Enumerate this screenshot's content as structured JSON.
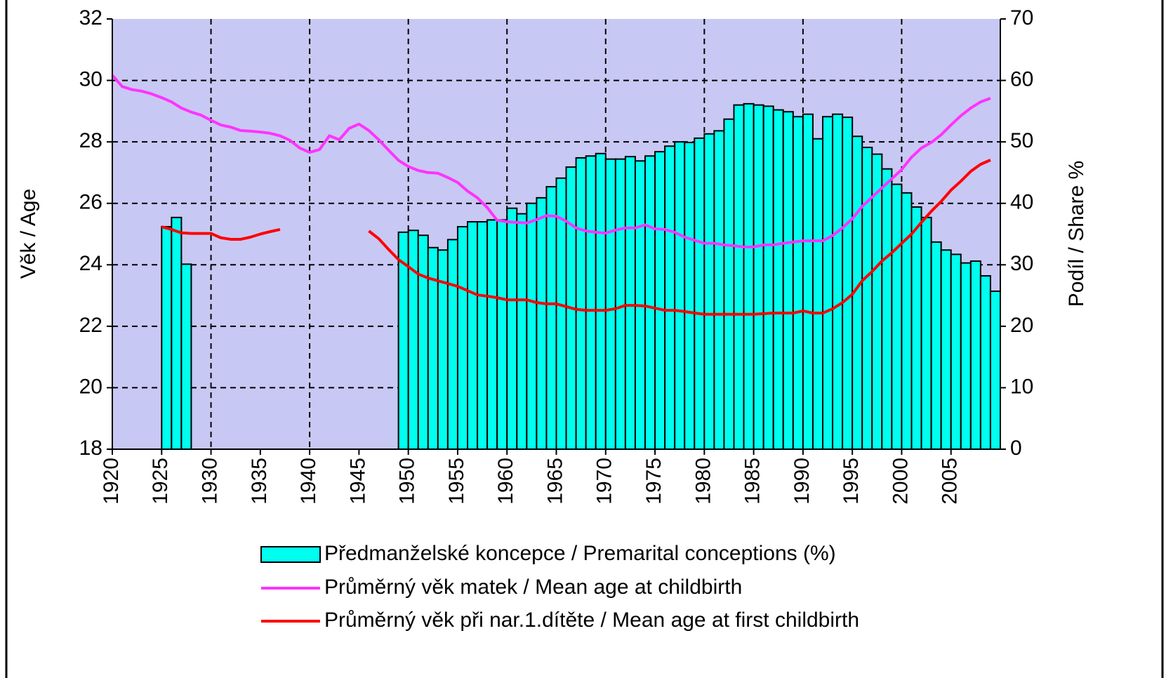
{
  "chart_data": {
    "type": "bar",
    "y_label": "Věk / Age",
    "y2_label": "Podíl / Share %",
    "x": [
      1920,
      1921,
      1922,
      1923,
      1924,
      1925,
      1926,
      1927,
      1928,
      1929,
      1930,
      1931,
      1932,
      1933,
      1934,
      1935,
      1936,
      1937,
      1938,
      1939,
      1940,
      1941,
      1942,
      1943,
      1944,
      1945,
      1946,
      1947,
      1948,
      1949,
      1950,
      1951,
      1952,
      1953,
      1954,
      1955,
      1956,
      1957,
      1958,
      1959,
      1960,
      1961,
      1962,
      1963,
      1964,
      1965,
      1966,
      1967,
      1968,
      1969,
      1970,
      1971,
      1972,
      1973,
      1974,
      1975,
      1976,
      1977,
      1978,
      1979,
      1980,
      1981,
      1982,
      1983,
      1984,
      1985,
      1986,
      1987,
      1988,
      1989,
      1990,
      1991,
      1992,
      1993,
      1994,
      1995,
      1996,
      1997,
      1998,
      1999,
      2000,
      2001,
      2002,
      2003,
      2004,
      2005,
      2006,
      2007,
      2008,
      2009
    ],
    "xlim": [
      1920,
      2010
    ],
    "xticks": [
      1920,
      1925,
      1930,
      1935,
      1940,
      1945,
      1950,
      1955,
      1960,
      1965,
      1970,
      1975,
      1980,
      1985,
      1990,
      1995,
      2000,
      2005
    ],
    "ylim": [
      18,
      32
    ],
    "yticks": [
      18,
      20,
      22,
      24,
      26,
      28,
      30,
      32
    ],
    "y2lim": [
      0,
      70
    ],
    "y2ticks": [
      0,
      10,
      20,
      30,
      40,
      50,
      60,
      70
    ],
    "grid": true,
    "series": [
      {
        "name": "Předmanželské koncepce / Premarital conceptions (%)",
        "type": "bar",
        "axis": "y2",
        "color": "#00ffee",
        "values": [
          null,
          null,
          null,
          null,
          null,
          36.2,
          37.7,
          30.1,
          null,
          null,
          null,
          null,
          null,
          null,
          null,
          null,
          null,
          null,
          null,
          null,
          null,
          null,
          null,
          null,
          null,
          null,
          null,
          null,
          null,
          35.3,
          35.6,
          34.8,
          32.8,
          32.4,
          34.1,
          36.2,
          37.0,
          37.0,
          37.3,
          37.3,
          39.2,
          38.3,
          40.0,
          40.9,
          42.7,
          44.1,
          45.9,
          47.4,
          47.7,
          48.1,
          47.2,
          47.2,
          47.6,
          46.9,
          47.7,
          48.4,
          49.3,
          50.0,
          49.9,
          50.6,
          51.3,
          51.8,
          53.7,
          56.0,
          56.2,
          56.0,
          55.8,
          55.2,
          54.9,
          54.1,
          54.5,
          50.5,
          54.1,
          54.5,
          54.0,
          50.9,
          49.1,
          48.0,
          45.6,
          43.1,
          41.7,
          39.4,
          37.7,
          33.7,
          32.4,
          31.7,
          30.3,
          30.6,
          28.2,
          25.7
        ]
      },
      {
        "name": "Průměrný věk matek / Mean age at childbirth",
        "type": "line",
        "color": "#ff33ff",
        "values": [
          30.17,
          29.8,
          29.7,
          29.65,
          29.56,
          29.44,
          29.3,
          29.1,
          28.97,
          28.87,
          28.7,
          28.55,
          28.48,
          28.37,
          28.35,
          28.32,
          28.28,
          28.2,
          28.05,
          27.8,
          27.66,
          27.75,
          28.2,
          28.07,
          28.44,
          28.58,
          28.37,
          28.07,
          27.73,
          27.4,
          27.2,
          27.07,
          27.0,
          26.98,
          26.84,
          26.68,
          26.4,
          26.18,
          25.86,
          25.45,
          25.4,
          25.38,
          25.36,
          25.47,
          25.6,
          25.58,
          25.42,
          25.2,
          25.1,
          25.06,
          25.03,
          25.13,
          25.2,
          25.2,
          25.3,
          25.17,
          25.15,
          25.06,
          24.9,
          24.8,
          24.7,
          24.7,
          24.65,
          24.62,
          24.58,
          24.58,
          24.65,
          24.65,
          24.7,
          24.74,
          24.78,
          24.78,
          24.78,
          24.95,
          25.2,
          25.5,
          25.9,
          26.2,
          26.5,
          26.8,
          27.1,
          27.5,
          27.8,
          27.98,
          28.23,
          28.55,
          28.85,
          29.1,
          29.3,
          29.42
        ]
      },
      {
        "name": "Průměrný věk při nar.1.dítěte / Mean age at first childbirth",
        "type": "line",
        "color": "#ff0000",
        "values": [
          null,
          null,
          null,
          null,
          null,
          25.24,
          25.15,
          25.04,
          25.02,
          25.02,
          25.02,
          24.88,
          24.83,
          24.83,
          24.9,
          25.0,
          25.08,
          25.15,
          null,
          null,
          null,
          null,
          null,
          null,
          null,
          null,
          25.1,
          24.85,
          24.5,
          24.17,
          23.94,
          23.7,
          23.57,
          23.48,
          23.39,
          23.3,
          23.16,
          23.02,
          22.98,
          22.93,
          22.86,
          22.86,
          22.86,
          22.77,
          22.73,
          22.73,
          22.64,
          22.55,
          22.52,
          22.52,
          22.52,
          22.57,
          22.68,
          22.68,
          22.66,
          22.59,
          22.52,
          22.52,
          22.48,
          22.43,
          22.39,
          22.39,
          22.39,
          22.39,
          22.39,
          22.39,
          22.41,
          22.43,
          22.43,
          22.43,
          22.5,
          22.43,
          22.43,
          22.57,
          22.77,
          23.04,
          23.48,
          23.78,
          24.12,
          24.39,
          24.7,
          25.0,
          25.38,
          25.74,
          26.06,
          26.43,
          26.72,
          27.04,
          27.27,
          27.41
        ]
      }
    ]
  }
}
